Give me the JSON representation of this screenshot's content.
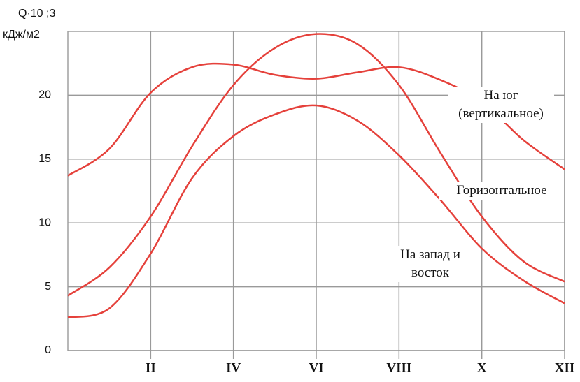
{
  "chart_data": {
    "type": "line",
    "y_label_top": "Q·10 ;3",
    "y_label_bottom": "кДж/м2",
    "xlim": [
      0,
      12
    ],
    "xticks": [
      {
        "value": 2,
        "label": "II"
      },
      {
        "value": 4,
        "label": "IV"
      },
      {
        "value": 6,
        "label": "VI"
      },
      {
        "value": 8,
        "label": "VIII"
      },
      {
        "value": 10,
        "label": "X"
      },
      {
        "value": 12,
        "label": "XII"
      }
    ],
    "ylim": [
      0,
      25
    ],
    "yticks": [
      0,
      5,
      10,
      15,
      20
    ],
    "grid": true,
    "x": [
      0,
      1,
      2,
      3,
      4,
      5,
      6,
      7,
      8,
      9,
      10,
      11,
      12
    ],
    "series": [
      {
        "name": "На юг (вертикальное)",
        "color": "#e5413b",
        "values": [
          13.7,
          15.8,
          20.2,
          22.2,
          22.4,
          21.6,
          21.3,
          21.8,
          22.2,
          21.2,
          19.5,
          16.5,
          14.2
        ]
      },
      {
        "name": "Горизонтальное",
        "color": "#e5413b",
        "values": [
          4.3,
          6.5,
          10.5,
          16.0,
          20.8,
          23.7,
          24.8,
          24.0,
          20.8,
          15.5,
          10.5,
          7.0,
          5.4
        ]
      },
      {
        "name": "На запад и восток",
        "color": "#e5413b",
        "values": [
          2.6,
          3.3,
          7.6,
          13.5,
          16.8,
          18.5,
          19.2,
          18.0,
          15.3,
          11.8,
          8.0,
          5.5,
          3.7
        ]
      }
    ]
  }
}
